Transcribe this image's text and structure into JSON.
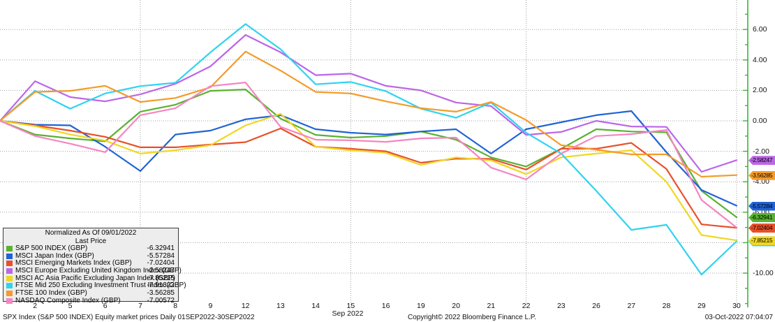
{
  "window": {
    "footer_left": "SPX Index (S&P 500 INDEX) Equity market prices   Daily 01SEP2022-30SEP2022",
    "footer_copyright": "Copyright© 2022 Bloomberg Finance L.P.",
    "footer_datetime": "03-Oct-2022 07:04:07"
  },
  "legend": {
    "title_line1": "Normalized As Of 09/01/2022",
    "title_line2": "Last Price"
  },
  "chart_data": {
    "type": "line",
    "title": "Normalized As Of 09/01/2022 - Last Price",
    "x": {
      "month_label": "Sep 2022",
      "dates": [
        1,
        2,
        5,
        6,
        7,
        8,
        9,
        12,
        13,
        14,
        15,
        16,
        19,
        20,
        21,
        22,
        23,
        26,
        27,
        28,
        29,
        30
      ],
      "labeled_dates": [
        2,
        5,
        6,
        7,
        8,
        9,
        12,
        13,
        14,
        15,
        16,
        19,
        20,
        21,
        22,
        23,
        26,
        27,
        28,
        29,
        30
      ],
      "gridline_dates": [
        7,
        15,
        22,
        30
      ]
    },
    "y": {
      "tick_values": [
        6,
        4,
        2,
        0,
        -2,
        -4,
        -6,
        -8,
        -10
      ],
      "tick_labels": [
        "6.00",
        "4.00",
        "2.00",
        "0.00",
        "-2.00",
        "-4.00",
        "-6.00",
        "-8.00",
        "-10.00"
      ],
      "minor_step": 1,
      "top_value": 7.95,
      "bottom_value": -12.2
    },
    "axis_color": "#3cb43c",
    "grid_color": "#a0a0a0",
    "legend_position": "bottom-left",
    "series": [
      {
        "name": "S&P 500 INDEX (GBP)",
        "color": "#59b232",
        "last_price": "-6.32941",
        "values": [
          0,
          -0.9,
          -1.15,
          -1.35,
          0.6,
          1.06,
          1.97,
          2.06,
          0.14,
          -0.92,
          -1.1,
          -1.0,
          -0.7,
          -1.24,
          -2.4,
          -3.0,
          -1.83,
          -0.55,
          -0.7,
          -0.75,
          -4.6,
          -6.32941
        ]
      },
      {
        "name": "MSCI Japan Index (GBP)",
        "color": "#1f63d6",
        "last_price": "-5.57284",
        "values": [
          0,
          -0.25,
          -0.3,
          -1.7,
          -3.3,
          -0.9,
          -0.64,
          0.1,
          0.37,
          -0.55,
          -0.78,
          -0.9,
          -0.7,
          -0.55,
          -2.15,
          -0.55,
          -0.09,
          0.37,
          0.64,
          -2.06,
          -4.54,
          -5.57284
        ]
      },
      {
        "name": "MSCI Emerging Markets Index (GBP)",
        "color": "#e8502a",
        "last_price": "-7.02404",
        "values": [
          0,
          -0.3,
          -0.64,
          -1.05,
          -1.74,
          -1.74,
          -1.56,
          -1.4,
          -0.5,
          -1.7,
          -1.83,
          -2.0,
          -2.75,
          -2.48,
          -2.5,
          -3.2,
          -1.83,
          -1.83,
          -1.45,
          -3.16,
          -6.8,
          -7.02404
        ]
      },
      {
        "name": "MSCI Europe Excluding United Kingdom Index (GBP)",
        "color": "#bc66e8",
        "last_price": "-2.58247",
        "values": [
          0,
          2.6,
          1.56,
          1.28,
          1.74,
          2.43,
          3.58,
          5.64,
          4.5,
          3.0,
          3.1,
          2.3,
          2.0,
          1.2,
          0.97,
          -0.92,
          -0.73,
          0.0,
          -0.37,
          -0.4,
          -3.35,
          -2.58247
        ]
      },
      {
        "name": "MSCI AC Asia Pacific Excluding Japan Index (GBP)",
        "color": "#f0d722",
        "last_price": "-7.85215",
        "values": [
          0,
          -0.35,
          -0.9,
          -1.3,
          -2.15,
          -1.93,
          -1.6,
          -0.3,
          0.46,
          -1.7,
          -1.93,
          -2.1,
          -2.9,
          -2.4,
          -2.6,
          -3.5,
          -2.4,
          -2.15,
          -1.93,
          -4.0,
          -7.5,
          -7.85215
        ]
      },
      {
        "name": "FTSE Mid 250 Excluding Investment Trust Index (GBP)",
        "color": "#2ed3f0",
        "last_price": "-7.91322",
        "values": [
          0,
          1.97,
          0.8,
          1.8,
          2.28,
          2.5,
          4.5,
          6.36,
          4.7,
          2.4,
          2.55,
          1.95,
          0.8,
          0.2,
          1.2,
          -0.78,
          -2.15,
          -4.6,
          -7.16,
          -6.83,
          -10.1,
          -7.91322
        ]
      },
      {
        "name": "FTSE 100 Index (GBP)",
        "color": "#f49b2a",
        "last_price": "-3.56285",
        "values": [
          0,
          1.9,
          1.97,
          2.3,
          1.24,
          1.5,
          2.2,
          4.55,
          3.3,
          1.9,
          1.8,
          1.28,
          0.83,
          0.6,
          1.24,
          0.05,
          -1.6,
          -1.9,
          -2.2,
          -2.2,
          -3.67,
          -3.56285
        ]
      },
      {
        "name": "NASDAQ Composite Index (GBP)",
        "color": "#f585c1",
        "last_price": "-7.00572",
        "values": [
          0,
          -1.0,
          -1.5,
          -2.06,
          0.37,
          0.83,
          2.28,
          2.52,
          -0.4,
          -1.24,
          -1.28,
          -1.38,
          -1.15,
          -1.1,
          -3.07,
          -3.85,
          -2.15,
          -1.0,
          -0.87,
          -0.6,
          -5.2,
          -7.00572
        ]
      }
    ]
  }
}
